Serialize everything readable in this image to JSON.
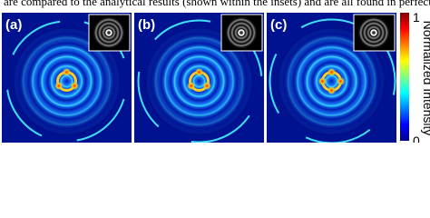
{
  "caption_fragment": "are compared to the analytical results (shown within the insets) and are all found in perfect agreement",
  "panels": [
    {
      "label": "(a)"
    },
    {
      "label": "(b)"
    },
    {
      "label": "(c)"
    }
  ],
  "colorbar": {
    "title": "Normalized Intensity",
    "max": 1,
    "min": 0
  }
}
